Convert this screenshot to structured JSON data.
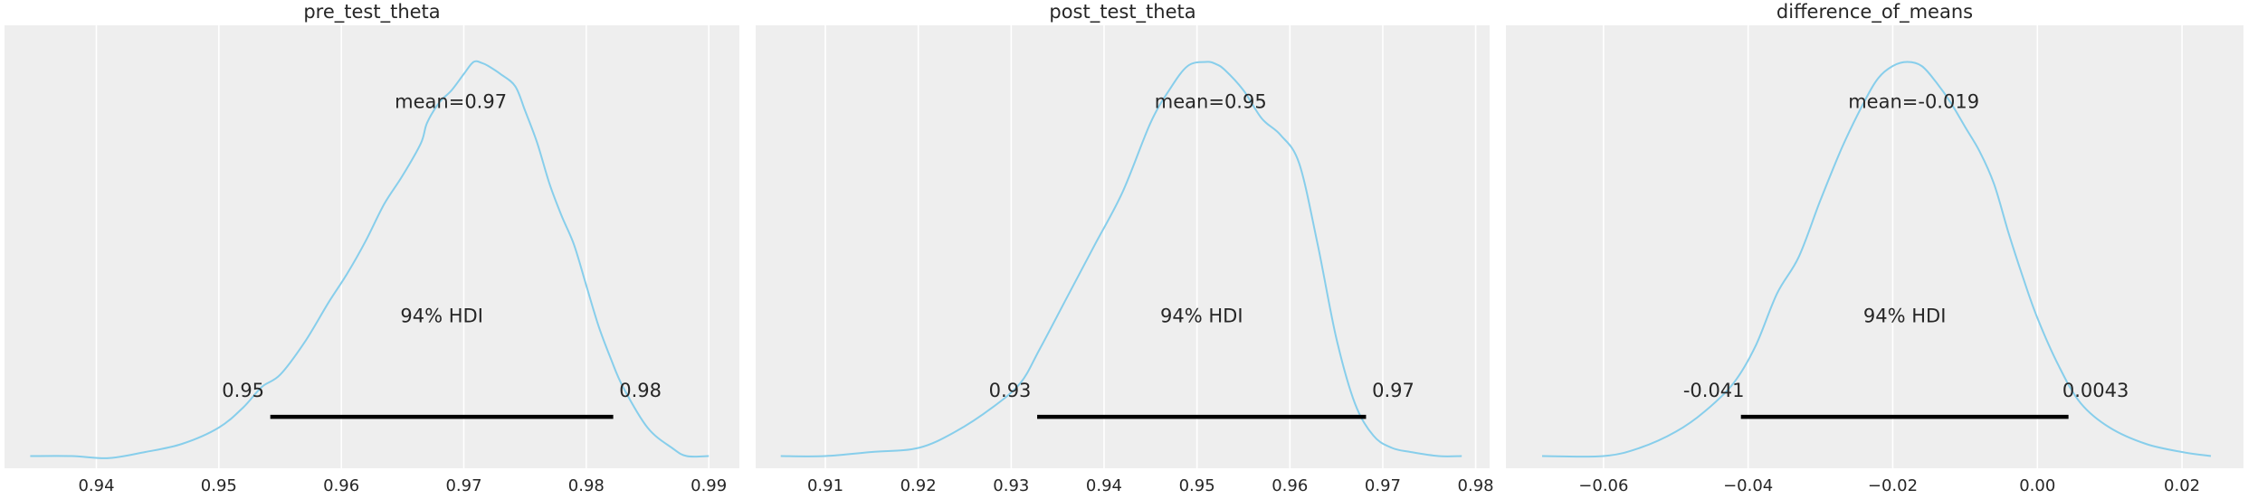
{
  "chart_data": [
    {
      "type": "line",
      "title": "pre_test_theta",
      "xlim": [
        0.9325,
        0.9925
      ],
      "ylim": [
        0,
        1.09
      ],
      "xticks": [
        0.94,
        0.95,
        0.96,
        0.97,
        0.98,
        0.99
      ],
      "xtick_labels": [
        "0.94",
        "0.95",
        "0.96",
        "0.97",
        "0.98",
        "0.99"
      ],
      "grid": true,
      "line_color": "#87ceeb",
      "density": {
        "x": [
          0.9346,
          0.938,
          0.941,
          0.944,
          0.947,
          0.95,
          0.952,
          0.9535,
          0.955,
          0.957,
          0.959,
          0.9605,
          0.962,
          0.9635,
          0.965,
          0.9665,
          0.967,
          0.968,
          0.969,
          0.97,
          0.9708,
          0.9715,
          0.972,
          0.973,
          0.9742,
          0.975,
          0.976,
          0.977,
          0.978,
          0.979,
          0.98,
          0.981,
          0.982,
          0.983,
          0.985,
          0.987,
          0.9882,
          0.99
        ],
        "y": [
          0.03,
          0.03,
          0.025,
          0.04,
          0.06,
          0.1,
          0.15,
          0.2,
          0.23,
          0.31,
          0.41,
          0.48,
          0.56,
          0.65,
          0.72,
          0.8,
          0.85,
          0.9,
          0.93,
          0.97,
          1.0,
          0.997,
          0.99,
          0.97,
          0.94,
          0.88,
          0.8,
          0.7,
          0.62,
          0.55,
          0.45,
          0.35,
          0.27,
          0.2,
          0.1,
          0.05,
          0.03,
          0.03
        ]
      },
      "mean_label": "mean=0.97",
      "hdi_label": "94% HDI",
      "hdi": [
        0.9542,
        0.9822
      ],
      "hdi_low_label": "0.95",
      "hdi_high_label": "0.98"
    },
    {
      "type": "line",
      "title": "post_test_theta",
      "xlim": [
        0.9025,
        0.9815
      ],
      "ylim": [
        0,
        1.09
      ],
      "xticks": [
        0.91,
        0.92,
        0.93,
        0.94,
        0.95,
        0.96,
        0.97,
        0.98
      ],
      "xtick_labels": [
        "0.91",
        "0.92",
        "0.93",
        "0.94",
        "0.95",
        "0.96",
        "0.97",
        "0.98"
      ],
      "grid": true,
      "line_color": "#87ceeb",
      "density": {
        "x": [
          0.9052,
          0.91,
          0.915,
          0.92,
          0.924,
          0.928,
          0.931,
          0.933,
          0.936,
          0.939,
          0.942,
          0.945,
          0.947,
          0.949,
          0.951,
          0.952,
          0.953,
          0.955,
          0.957,
          0.959,
          0.961,
          0.963,
          0.965,
          0.967,
          0.969,
          0.971,
          0.973,
          0.976,
          0.9785
        ],
        "y": [
          0.03,
          0.03,
          0.04,
          0.05,
          0.09,
          0.15,
          0.21,
          0.29,
          0.42,
          0.55,
          0.68,
          0.85,
          0.93,
          0.99,
          1.0,
          0.995,
          0.98,
          0.93,
          0.86,
          0.82,
          0.75,
          0.55,
          0.32,
          0.16,
          0.08,
          0.05,
          0.04,
          0.03,
          0.03
        ]
      },
      "mean_label": "mean=0.95",
      "hdi_label": "94% HDI",
      "hdi": [
        0.9328,
        0.9682
      ],
      "hdi_low_label": "0.93",
      "hdi_high_label": "0.97"
    },
    {
      "type": "line",
      "title": "difference_of_means",
      "xlim": [
        -0.0735,
        0.0285
      ],
      "ylim": [
        0,
        1.09
      ],
      "xticks": [
        -0.06,
        -0.04,
        -0.02,
        0.0,
        0.02
      ],
      "xtick_labels": [
        "−0.06",
        "−0.04",
        "−0.02",
        "0.00",
        "0.02"
      ],
      "grid": true,
      "line_color": "#87ceeb",
      "density": {
        "x": [
          -0.0685,
          -0.06,
          -0.055,
          -0.05,
          -0.046,
          -0.042,
          -0.039,
          -0.036,
          -0.033,
          -0.03,
          -0.027,
          -0.024,
          -0.022,
          -0.02,
          -0.018,
          -0.016,
          -0.014,
          -0.012,
          -0.01,
          -0.008,
          -0.006,
          -0.004,
          -0.002,
          0.0,
          0.003,
          0.006,
          0.01,
          0.015,
          0.02,
          0.024
        ],
        "y": [
          0.03,
          0.03,
          0.05,
          0.09,
          0.14,
          0.21,
          0.3,
          0.43,
          0.52,
          0.66,
          0.79,
          0.9,
          0.96,
          0.99,
          1.0,
          0.99,
          0.95,
          0.9,
          0.84,
          0.78,
          0.7,
          0.58,
          0.47,
          0.37,
          0.25,
          0.16,
          0.1,
          0.06,
          0.04,
          0.03
        ]
      },
      "mean_label": "mean=-0.019",
      "hdi_label": "94% HDI",
      "hdi": [
        -0.041,
        0.0043
      ],
      "hdi_low_label": "-0.041",
      "hdi_high_label": "0.0043"
    }
  ]
}
